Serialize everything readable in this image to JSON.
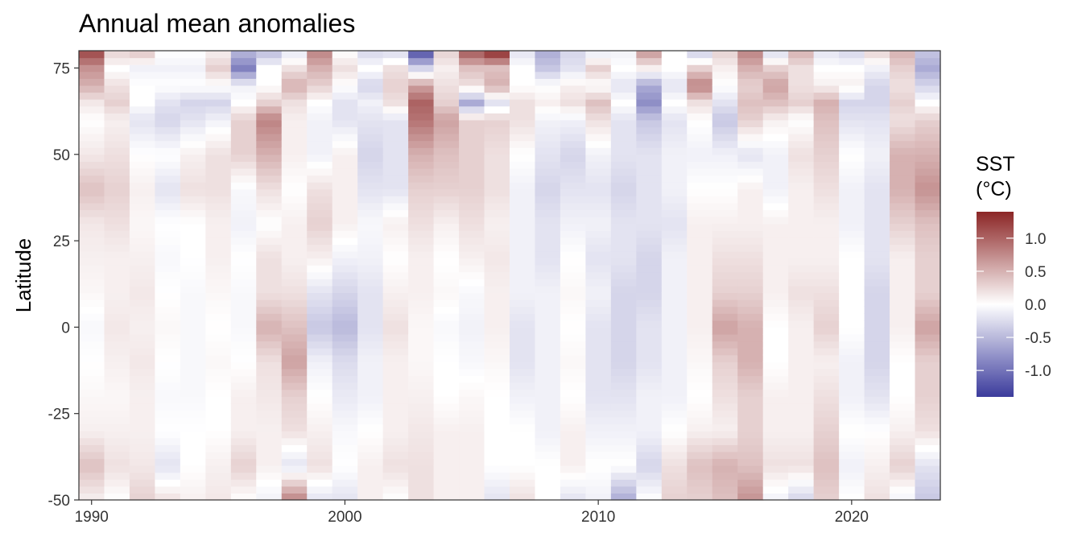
{
  "chart_data": {
    "type": "heatmap",
    "title": "Annual mean anomalies",
    "xlabel": "",
    "ylabel": "Latitude",
    "xlim": [
      1989.5,
      2023.5
    ],
    "ylim": [
      -50,
      80
    ],
    "x_ticks": [
      1990,
      2000,
      2010,
      2020
    ],
    "y_ticks": [
      -50,
      -25,
      0,
      25,
      50,
      75
    ],
    "x_tick_labels": [
      "1990",
      "2000",
      "2010",
      "2020"
    ],
    "y_tick_labels": [
      "-50",
      "-25",
      "0",
      "25",
      "50",
      "75"
    ],
    "years": [
      1990,
      1991,
      1992,
      1993,
      1994,
      1995,
      1996,
      1997,
      1998,
      1999,
      2000,
      2001,
      2002,
      2003,
      2004,
      2005,
      2006,
      2007,
      2008,
      2009,
      2010,
      2011,
      2012,
      2013,
      2014,
      2015,
      2016,
      2017,
      2018,
      2019,
      2020,
      2021,
      2022,
      2023
    ],
    "latitude_nodes": [
      -50,
      -40,
      -30,
      -20,
      -10,
      0,
      10,
      20,
      30,
      40,
      50,
      60,
      65,
      70,
      75,
      80
    ],
    "anomalies": [
      [
        0.1,
        0.4,
        0.1,
        0.05,
        0.0,
        -0.05,
        0.05,
        0.1,
        0.15,
        0.4,
        0.15,
        0.0,
        0.15,
        0.5,
        0.7,
        1.2
      ],
      [
        0.0,
        0.2,
        0.1,
        0.05,
        0.1,
        0.15,
        0.1,
        0.1,
        0.2,
        0.3,
        0.2,
        0.1,
        0.3,
        0.2,
        0.0,
        0.3
      ],
      [
        0.3,
        0.15,
        0.1,
        0.1,
        0.15,
        0.1,
        0.15,
        0.1,
        0.05,
        0.1,
        0.0,
        -0.2,
        0.0,
        0.0,
        -0.1,
        0.4
      ],
      [
        0.2,
        -0.2,
        0.0,
        -0.05,
        0.0,
        0.05,
        0.0,
        -0.05,
        0.0,
        -0.2,
        0.0,
        -0.3,
        -0.2,
        0.0,
        -0.1,
        0.0
      ],
      [
        0.1,
        0.0,
        0.0,
        -0.05,
        -0.05,
        -0.05,
        -0.05,
        0.0,
        0.0,
        0.2,
        0.1,
        -0.2,
        -0.3,
        0.0,
        -0.1,
        0.0
      ],
      [
        0.15,
        0.1,
        0.0,
        0.0,
        0.05,
        0.0,
        0.05,
        0.1,
        0.1,
        0.2,
        0.2,
        -0.1,
        -0.3,
        0.0,
        0.3,
        0.1
      ],
      [
        0.0,
        0.3,
        0.1,
        0.1,
        0.0,
        -0.05,
        -0.05,
        0.0,
        -0.1,
        -0.05,
        0.3,
        0.3,
        0.0,
        -0.1,
        -0.9,
        -0.5
      ],
      [
        -0.1,
        0.1,
        0.1,
        0.15,
        0.2,
        0.5,
        0.2,
        0.2,
        0.0,
        0.2,
        0.5,
        0.8,
        0.3,
        0.0,
        0.0,
        -0.5
      ],
      [
        0.8,
        -0.2,
        0.2,
        0.3,
        0.6,
        0.4,
        0.2,
        0.1,
        0.1,
        0.0,
        0.1,
        0.1,
        0.2,
        0.5,
        0.2,
        -0.2
      ],
      [
        -0.2,
        0.2,
        0.1,
        0.0,
        -0.1,
        -0.4,
        -0.2,
        0.1,
        0.3,
        0.2,
        -0.1,
        -0.1,
        0.0,
        0.3,
        0.5,
        0.8
      ],
      [
        -0.2,
        0.0,
        -0.05,
        -0.15,
        -0.25,
        -0.5,
        -0.3,
        -0.1,
        0.1,
        0.1,
        0.1,
        -0.2,
        -0.2,
        0.0,
        0.2,
        0.0
      ],
      [
        0.1,
        0.1,
        0.0,
        -0.1,
        -0.1,
        -0.2,
        -0.2,
        -0.1,
        -0.05,
        -0.2,
        -0.3,
        -0.2,
        -0.1,
        -0.3,
        0.0,
        -0.3
      ],
      [
        0.0,
        0.2,
        0.1,
        0.1,
        0.1,
        0.2,
        0.1,
        0.0,
        0.1,
        -0.2,
        -0.2,
        -0.2,
        0.2,
        0.3,
        0.2,
        -0.3
      ],
      [
        0.2,
        0.2,
        0.15,
        0.1,
        0.05,
        0.05,
        0.1,
        0.1,
        0.2,
        0.3,
        0.5,
        0.9,
        1.0,
        0.6,
        -0.3,
        -1.3
      ],
      [
        0.1,
        0.1,
        0.1,
        0.0,
        0.0,
        -0.05,
        0.05,
        0.0,
        0.1,
        0.3,
        0.4,
        0.6,
        0.3,
        0.2,
        0.1,
        0.3
      ],
      [
        0.1,
        0.1,
        0.1,
        0.05,
        -0.05,
        -0.1,
        -0.05,
        0.1,
        0.2,
        0.3,
        0.3,
        0.3,
        -0.6,
        0.2,
        0.4,
        1.1
      ],
      [
        -0.2,
        0.0,
        0.0,
        0.0,
        0.05,
        0.1,
        0.1,
        0.15,
        0.1,
        0.2,
        0.2,
        0.3,
        -0.2,
        0.5,
        0.4,
        1.4
      ],
      [
        0.2,
        0.0,
        0.0,
        -0.1,
        -0.2,
        -0.2,
        -0.1,
        -0.1,
        -0.1,
        -0.1,
        0.0,
        0.2,
        0.2,
        0.0,
        0.0,
        -0.2
      ],
      [
        0.0,
        0.0,
        -0.1,
        -0.1,
        -0.1,
        -0.1,
        -0.1,
        -0.2,
        -0.2,
        -0.3,
        -0.2,
        -0.1,
        0.1,
        0.0,
        -0.4,
        -0.6
      ],
      [
        -0.2,
        0.1,
        0.1,
        0.0,
        0.05,
        0.0,
        0.05,
        0.0,
        -0.1,
        -0.2,
        -0.3,
        -0.1,
        0.2,
        0.1,
        -0.2,
        -0.3
      ],
      [
        -0.1,
        0.0,
        -0.1,
        -0.2,
        -0.2,
        -0.2,
        -0.1,
        -0.2,
        -0.1,
        -0.2,
        -0.1,
        0.2,
        0.4,
        0.0,
        0.3,
        -0.2
      ],
      [
        -0.6,
        0.0,
        -0.1,
        -0.2,
        -0.3,
        -0.3,
        -0.3,
        -0.2,
        -0.2,
        -0.3,
        -0.2,
        -0.2,
        0.0,
        -0.2,
        0.0,
        -0.1
      ],
      [
        0.0,
        -0.3,
        -0.1,
        -0.1,
        -0.2,
        -0.2,
        -0.3,
        -0.3,
        -0.2,
        -0.2,
        -0.2,
        -0.4,
        -0.8,
        -0.6,
        0.1,
        0.7
      ],
      [
        0.3,
        0.2,
        0.0,
        -0.1,
        -0.1,
        -0.1,
        -0.1,
        -0.1,
        -0.2,
        -0.1,
        -0.1,
        -0.2,
        0.0,
        -0.2,
        0.0,
        0.0
      ],
      [
        0.3,
        0.4,
        0.1,
        0.0,
        0.05,
        0.1,
        0.1,
        0.1,
        0.1,
        0.0,
        -0.1,
        0.0,
        0.2,
        0.8,
        0.3,
        -0.4
      ],
      [
        0.4,
        0.5,
        0.1,
        0.2,
        0.3,
        0.6,
        0.3,
        0.2,
        0.1,
        0.0,
        -0.1,
        -0.4,
        -0.2,
        0.0,
        0.1,
        0.3
      ],
      [
        0.7,
        0.4,
        0.3,
        0.3,
        0.5,
        0.5,
        0.3,
        0.2,
        0.1,
        0.1,
        -0.2,
        0.3,
        0.4,
        0.3,
        0.5,
        0.8
      ],
      [
        -0.1,
        0.2,
        0.1,
        0.1,
        0.0,
        0.0,
        0.1,
        0.1,
        0.1,
        -0.1,
        -0.1,
        0.1,
        0.4,
        0.6,
        0.3,
        -0.3
      ],
      [
        -0.3,
        0.2,
        0.1,
        0.1,
        0.1,
        0.1,
        0.2,
        0.1,
        0.1,
        0.1,
        0.2,
        0.0,
        0.3,
        0.2,
        0.2,
        0.5
      ],
      [
        0.3,
        0.4,
        0.3,
        0.2,
        0.1,
        0.3,
        0.2,
        0.1,
        0.1,
        0.2,
        0.3,
        0.4,
        0.5,
        0.1,
        0.0,
        -0.2
      ],
      [
        0.0,
        -0.1,
        0.0,
        -0.1,
        -0.1,
        0.0,
        0.0,
        0.0,
        -0.1,
        -0.1,
        0.0,
        -0.2,
        -0.3,
        0.1,
        0.0,
        -0.3
      ],
      [
        0.2,
        0.1,
        0.0,
        -0.2,
        -0.3,
        -0.3,
        -0.3,
        -0.2,
        -0.2,
        -0.2,
        -0.1,
        -0.2,
        -0.3,
        -0.3,
        -0.1,
        0.3
      ],
      [
        -0.1,
        0.3,
        0.1,
        0.0,
        0.0,
        0.1,
        0.1,
        0.1,
        0.3,
        0.5,
        0.5,
        0.2,
        0.3,
        0.2,
        0.3,
        0.5
      ],
      [
        -0.4,
        -0.2,
        0.2,
        0.3,
        0.3,
        0.6,
        0.3,
        0.3,
        0.4,
        0.7,
        0.5,
        0.3,
        0.0,
        -0.3,
        -0.6,
        -0.4
      ]
    ],
    "color_scale": {
      "title": "SST\n(°C)",
      "title_lines": [
        "SST",
        "(°C)"
      ],
      "limits": [
        -1.4,
        1.4
      ],
      "breaks": [
        1.0,
        0.5,
        0.0,
        -0.5,
        -1.0
      ],
      "break_labels": [
        "1.0",
        "0.5",
        "0.0",
        "-0.5",
        "-1.0"
      ],
      "low": "#3B3B9C",
      "mid": "#FFFFFF",
      "high": "#8B2525"
    },
    "grid": false,
    "legend_position": "right"
  }
}
